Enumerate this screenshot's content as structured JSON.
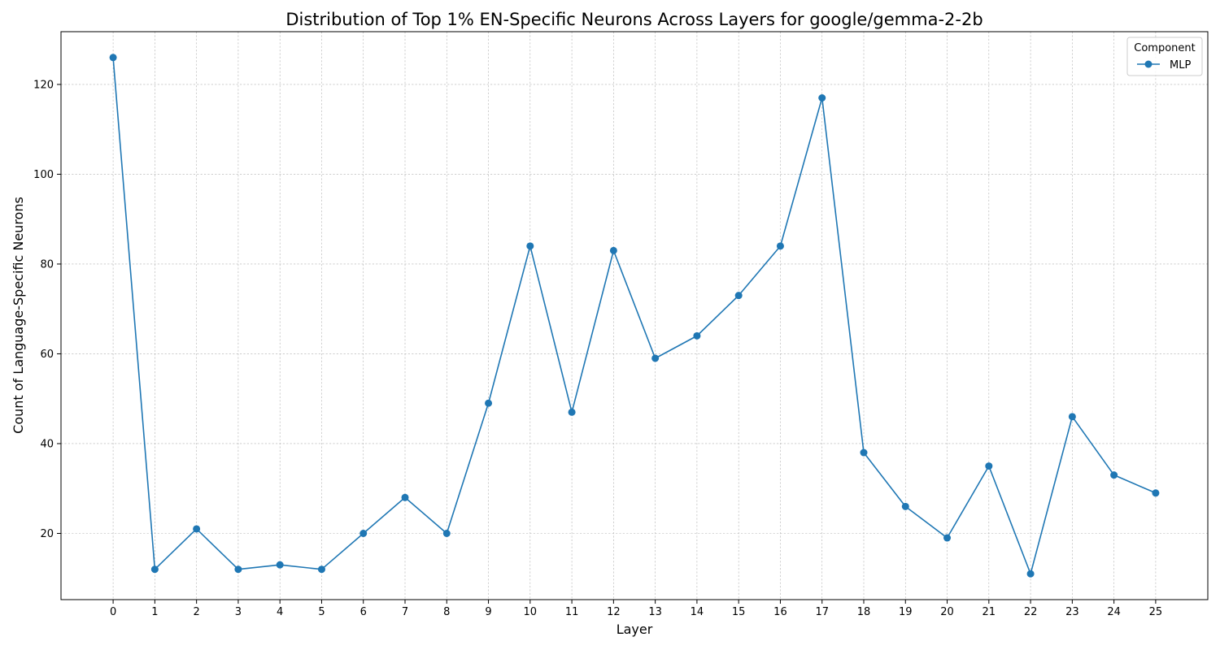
{
  "chart_data": {
    "type": "line",
    "title": "Distribution of Top 1% EN-Specific Neurons Across Layers for google/gemma-2-2b",
    "xlabel": "Layer",
    "ylabel": "Count of Language-Specific Neurons",
    "x": [
      0,
      1,
      2,
      3,
      4,
      5,
      6,
      7,
      8,
      9,
      10,
      11,
      12,
      13,
      14,
      15,
      16,
      17,
      18,
      19,
      20,
      21,
      22,
      23,
      24,
      25
    ],
    "xtick_labels": [
      "0",
      "1",
      "2",
      "3",
      "4",
      "5",
      "6",
      "7",
      "8",
      "9",
      "10",
      "11",
      "12",
      "13",
      "14",
      "15",
      "16",
      "17",
      "18",
      "19",
      "20",
      "21",
      "22",
      "23",
      "24",
      "25"
    ],
    "yticks": [
      20,
      40,
      60,
      80,
      100,
      120
    ],
    "ytick_labels": [
      "20",
      "40",
      "60",
      "80",
      "100",
      "120"
    ],
    "xlim": [
      -1.25,
      26.25
    ],
    "ylim": [
      5.25,
      131.75
    ],
    "grid": true,
    "legend": {
      "title": "Component",
      "placement": "top-right"
    },
    "series": [
      {
        "name": "MLP",
        "color": "#1f77b4",
        "marker": "circle",
        "values": [
          126,
          12,
          21,
          12,
          13,
          12,
          20,
          28,
          20,
          49,
          84,
          47,
          83,
          59,
          64,
          73,
          84,
          117,
          38,
          26,
          19,
          35,
          11,
          46,
          33,
          29
        ]
      }
    ]
  }
}
